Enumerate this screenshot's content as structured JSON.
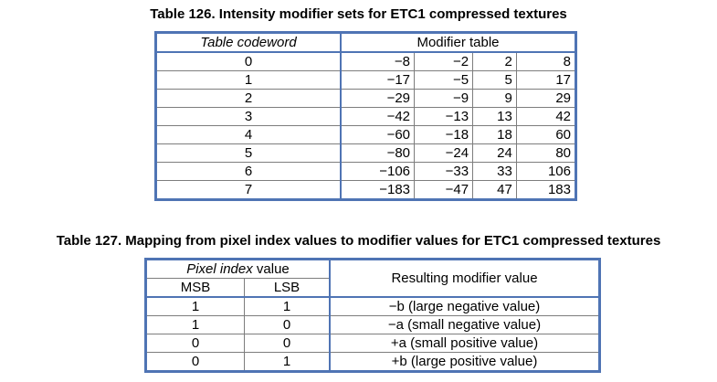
{
  "table126": {
    "caption": "Table 126. Intensity modifier sets for ETC1 compressed textures",
    "header_codeword": "Table codeword",
    "header_modifier": "Modifier table",
    "rows": [
      [
        "0",
        "−8",
        "−2",
        "2",
        "8"
      ],
      [
        "1",
        "−17",
        "−5",
        "5",
        "17"
      ],
      [
        "2",
        "−29",
        "−9",
        "9",
        "29"
      ],
      [
        "3",
        "−42",
        "−13",
        "13",
        "42"
      ],
      [
        "4",
        "−60",
        "−18",
        "18",
        "60"
      ],
      [
        "5",
        "−80",
        "−24",
        "24",
        "80"
      ],
      [
        "6",
        "−106",
        "−33",
        "33",
        "106"
      ],
      [
        "7",
        "−183",
        "−47",
        "47",
        "183"
      ]
    ]
  },
  "table127": {
    "caption": "Table 127. Mapping from pixel index values to modifier values for ETC1 compressed textures",
    "header_pixel_italic": "Pixel index",
    "header_pixel_rest": " value",
    "header_msb": "MSB",
    "header_lsb": "LSB",
    "header_result": "Resulting modifier value",
    "rows": [
      [
        "1",
        "1",
        "−b (large negative value)"
      ],
      [
        "1",
        "0",
        "−a (small negative value)"
      ],
      [
        "0",
        "0",
        "+a (small positive value)"
      ],
      [
        "0",
        "1",
        "+b (large positive value)"
      ]
    ]
  }
}
